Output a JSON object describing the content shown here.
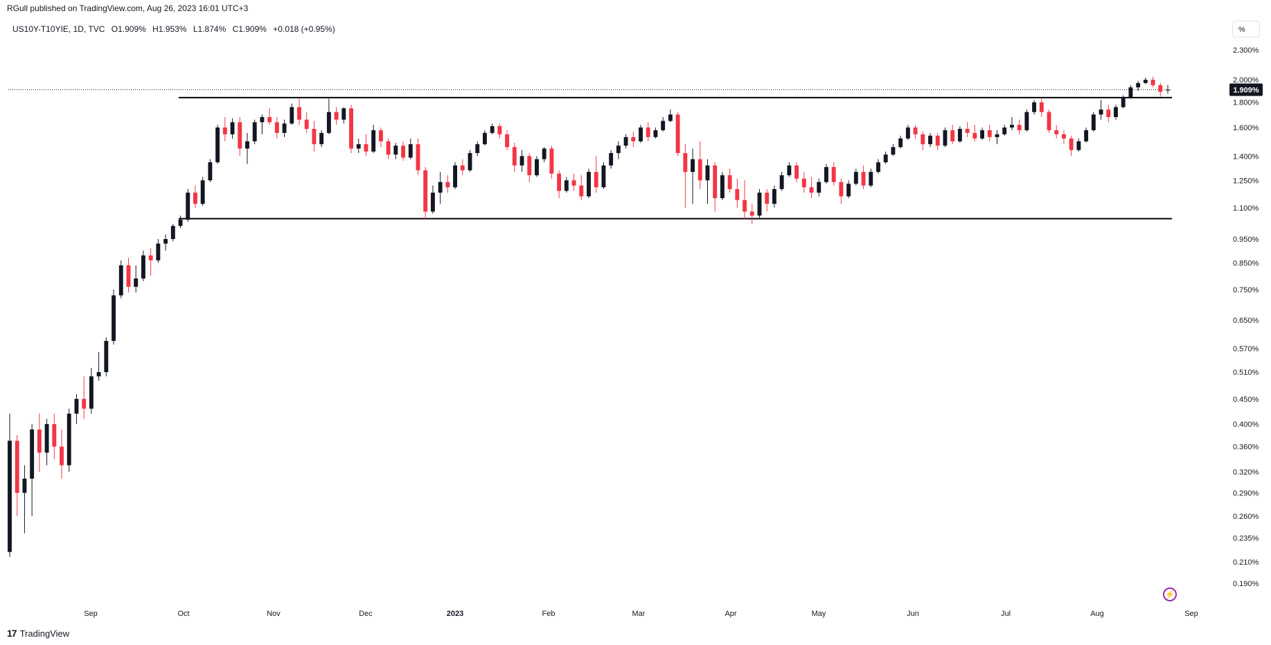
{
  "header": {
    "published": "RGull published on TradingView.com, Aug 26, 2023 16:01 UTC+3"
  },
  "symbol": {
    "name": "US10Y-T10YIE, 1D, TVC",
    "open": "O1.909%",
    "high": "H1.953%",
    "low": "L1.874%",
    "close": "C1.909%",
    "change": "+0.018 (+0.95%)"
  },
  "unit_button": {
    "label": "%"
  },
  "footer": {
    "logo_mark": "17",
    "logo_text": "TradingView"
  },
  "colors": {
    "up": "#131722",
    "down": "#f23645",
    "line": "#000000"
  },
  "icons": {
    "flash": "lightning-icon",
    "logo": "tradingview-logo-icon"
  },
  "chart_data": {
    "type": "candlestick",
    "scale": "log",
    "y_ticks": [
      "2.300%",
      "2.000%",
      "1.800%",
      "1.600%",
      "1.400%",
      "1.250%",
      "1.100%",
      "0.950%",
      "0.850%",
      "0.750%",
      "0.650%",
      "0.570%",
      "0.510%",
      "0.450%",
      "0.400%",
      "0.360%",
      "0.320%",
      "0.290%",
      "0.260%",
      "0.235%",
      "0.210%",
      "0.190%"
    ],
    "x_ticks": [
      "Sep",
      "Oct",
      "Nov",
      "Dec",
      "2023",
      "Feb",
      "Mar",
      "Apr",
      "May",
      "Jun",
      "Jul",
      "Aug",
      "Sep"
    ],
    "last_price_label": "1.909%",
    "last_price": 1.909,
    "horizontal_lines": [
      1.84,
      1.045
    ],
    "bars": [
      {
        "o": 0.22,
        "h": 0.42,
        "l": 0.215,
        "c": 0.37
      },
      {
        "o": 0.37,
        "h": 0.38,
        "l": 0.26,
        "c": 0.29
      },
      {
        "o": 0.29,
        "h": 0.33,
        "l": 0.24,
        "c": 0.31
      },
      {
        "o": 0.31,
        "h": 0.4,
        "l": 0.26,
        "c": 0.39
      },
      {
        "o": 0.39,
        "h": 0.42,
        "l": 0.32,
        "c": 0.35
      },
      {
        "o": 0.35,
        "h": 0.41,
        "l": 0.33,
        "c": 0.4
      },
      {
        "o": 0.4,
        "h": 0.42,
        "l": 0.34,
        "c": 0.36
      },
      {
        "o": 0.36,
        "h": 0.39,
        "l": 0.31,
        "c": 0.33
      },
      {
        "o": 0.33,
        "h": 0.43,
        "l": 0.32,
        "c": 0.42
      },
      {
        "o": 0.42,
        "h": 0.46,
        "l": 0.4,
        "c": 0.45
      },
      {
        "o": 0.45,
        "h": 0.5,
        "l": 0.41,
        "c": 0.43
      },
      {
        "o": 0.43,
        "h": 0.52,
        "l": 0.42,
        "c": 0.5
      },
      {
        "o": 0.5,
        "h": 0.56,
        "l": 0.49,
        "c": 0.51
      },
      {
        "o": 0.51,
        "h": 0.6,
        "l": 0.5,
        "c": 0.59
      },
      {
        "o": 0.59,
        "h": 0.75,
        "l": 0.58,
        "c": 0.73
      },
      {
        "o": 0.73,
        "h": 0.86,
        "l": 0.72,
        "c": 0.84
      },
      {
        "o": 0.84,
        "h": 0.87,
        "l": 0.74,
        "c": 0.76
      },
      {
        "o": 0.76,
        "h": 0.84,
        "l": 0.74,
        "c": 0.79
      },
      {
        "o": 0.79,
        "h": 0.9,
        "l": 0.78,
        "c": 0.88
      },
      {
        "o": 0.88,
        "h": 0.91,
        "l": 0.8,
        "c": 0.86
      },
      {
        "o": 0.86,
        "h": 0.95,
        "l": 0.85,
        "c": 0.93
      },
      {
        "o": 0.93,
        "h": 0.97,
        "l": 0.9,
        "c": 0.95
      },
      {
        "o": 0.95,
        "h": 1.02,
        "l": 0.94,
        "c": 1.01
      },
      {
        "o": 1.01,
        "h": 1.06,
        "l": 1.0,
        "c": 1.04
      },
      {
        "o": 1.04,
        "h": 1.2,
        "l": 1.03,
        "c": 1.18
      },
      {
        "o": 1.18,
        "h": 1.22,
        "l": 1.1,
        "c": 1.12
      },
      {
        "o": 1.12,
        "h": 1.27,
        "l": 1.11,
        "c": 1.25
      },
      {
        "o": 1.25,
        "h": 1.38,
        "l": 1.24,
        "c": 1.36
      },
      {
        "o": 1.36,
        "h": 1.62,
        "l": 1.35,
        "c": 1.6
      },
      {
        "o": 1.6,
        "h": 1.68,
        "l": 1.5,
        "c": 1.55
      },
      {
        "o": 1.55,
        "h": 1.67,
        "l": 1.52,
        "c": 1.64
      },
      {
        "o": 1.64,
        "h": 1.68,
        "l": 1.4,
        "c": 1.45
      },
      {
        "o": 1.45,
        "h": 1.56,
        "l": 1.35,
        "c": 1.5
      },
      {
        "o": 1.5,
        "h": 1.66,
        "l": 1.48,
        "c": 1.64
      },
      {
        "o": 1.64,
        "h": 1.7,
        "l": 1.55,
        "c": 1.68
      },
      {
        "o": 1.68,
        "h": 1.75,
        "l": 1.62,
        "c": 1.64
      },
      {
        "o": 1.64,
        "h": 1.68,
        "l": 1.52,
        "c": 1.56
      },
      {
        "o": 1.56,
        "h": 1.66,
        "l": 1.53,
        "c": 1.63
      },
      {
        "o": 1.63,
        "h": 1.79,
        "l": 1.62,
        "c": 1.76
      },
      {
        "o": 1.76,
        "h": 1.83,
        "l": 1.62,
        "c": 1.66
      },
      {
        "o": 1.66,
        "h": 1.72,
        "l": 1.56,
        "c": 1.59
      },
      {
        "o": 1.59,
        "h": 1.65,
        "l": 1.43,
        "c": 1.48
      },
      {
        "o": 1.48,
        "h": 1.58,
        "l": 1.46,
        "c": 1.56
      },
      {
        "o": 1.56,
        "h": 1.83,
        "l": 1.55,
        "c": 1.72
      },
      {
        "o": 1.72,
        "h": 1.76,
        "l": 1.62,
        "c": 1.66
      },
      {
        "o": 1.66,
        "h": 1.76,
        "l": 1.63,
        "c": 1.75
      },
      {
        "o": 1.75,
        "h": 1.78,
        "l": 1.42,
        "c": 1.45
      },
      {
        "o": 1.45,
        "h": 1.52,
        "l": 1.42,
        "c": 1.48
      },
      {
        "o": 1.48,
        "h": 1.55,
        "l": 1.4,
        "c": 1.43
      },
      {
        "o": 1.43,
        "h": 1.62,
        "l": 1.42,
        "c": 1.58
      },
      {
        "o": 1.58,
        "h": 1.6,
        "l": 1.46,
        "c": 1.5
      },
      {
        "o": 1.5,
        "h": 1.52,
        "l": 1.38,
        "c": 1.41
      },
      {
        "o": 1.41,
        "h": 1.49,
        "l": 1.38,
        "c": 1.47
      },
      {
        "o": 1.47,
        "h": 1.5,
        "l": 1.37,
        "c": 1.39
      },
      {
        "o": 1.39,
        "h": 1.52,
        "l": 1.38,
        "c": 1.48
      },
      {
        "o": 1.48,
        "h": 1.52,
        "l": 1.28,
        "c": 1.31
      },
      {
        "o": 1.31,
        "h": 1.33,
        "l": 1.04,
        "c": 1.08
      },
      {
        "o": 1.08,
        "h": 1.22,
        "l": 1.07,
        "c": 1.18
      },
      {
        "o": 1.18,
        "h": 1.3,
        "l": 1.12,
        "c": 1.24
      },
      {
        "o": 1.24,
        "h": 1.28,
        "l": 1.18,
        "c": 1.21
      },
      {
        "o": 1.21,
        "h": 1.36,
        "l": 1.2,
        "c": 1.34
      },
      {
        "o": 1.34,
        "h": 1.38,
        "l": 1.28,
        "c": 1.31
      },
      {
        "o": 1.31,
        "h": 1.44,
        "l": 1.3,
        "c": 1.42
      },
      {
        "o": 1.42,
        "h": 1.5,
        "l": 1.4,
        "c": 1.48
      },
      {
        "o": 1.48,
        "h": 1.58,
        "l": 1.47,
        "c": 1.56
      },
      {
        "o": 1.56,
        "h": 1.63,
        "l": 1.55,
        "c": 1.61
      },
      {
        "o": 1.61,
        "h": 1.63,
        "l": 1.52,
        "c": 1.55
      },
      {
        "o": 1.55,
        "h": 1.58,
        "l": 1.44,
        "c": 1.46
      },
      {
        "o": 1.46,
        "h": 1.49,
        "l": 1.3,
        "c": 1.34
      },
      {
        "o": 1.34,
        "h": 1.44,
        "l": 1.3,
        "c": 1.4
      },
      {
        "o": 1.4,
        "h": 1.42,
        "l": 1.24,
        "c": 1.28
      },
      {
        "o": 1.28,
        "h": 1.4,
        "l": 1.27,
        "c": 1.38
      },
      {
        "o": 1.38,
        "h": 1.46,
        "l": 1.36,
        "c": 1.45
      },
      {
        "o": 1.45,
        "h": 1.47,
        "l": 1.26,
        "c": 1.29
      },
      {
        "o": 1.29,
        "h": 1.31,
        "l": 1.15,
        "c": 1.19
      },
      {
        "o": 1.19,
        "h": 1.27,
        "l": 1.18,
        "c": 1.25
      },
      {
        "o": 1.25,
        "h": 1.29,
        "l": 1.19,
        "c": 1.22
      },
      {
        "o": 1.22,
        "h": 1.28,
        "l": 1.14,
        "c": 1.16
      },
      {
        "o": 1.16,
        "h": 1.32,
        "l": 1.15,
        "c": 1.3
      },
      {
        "o": 1.3,
        "h": 1.4,
        "l": 1.18,
        "c": 1.21
      },
      {
        "o": 1.21,
        "h": 1.36,
        "l": 1.2,
        "c": 1.34
      },
      {
        "o": 1.34,
        "h": 1.44,
        "l": 1.32,
        "c": 1.42
      },
      {
        "o": 1.42,
        "h": 1.5,
        "l": 1.38,
        "c": 1.47
      },
      {
        "o": 1.47,
        "h": 1.55,
        "l": 1.45,
        "c": 1.53
      },
      {
        "o": 1.53,
        "h": 1.57,
        "l": 1.46,
        "c": 1.5
      },
      {
        "o": 1.5,
        "h": 1.62,
        "l": 1.49,
        "c": 1.6
      },
      {
        "o": 1.6,
        "h": 1.64,
        "l": 1.5,
        "c": 1.53
      },
      {
        "o": 1.53,
        "h": 1.6,
        "l": 1.52,
        "c": 1.58
      },
      {
        "o": 1.58,
        "h": 1.68,
        "l": 1.57,
        "c": 1.65
      },
      {
        "o": 1.65,
        "h": 1.74,
        "l": 1.64,
        "c": 1.7
      },
      {
        "o": 1.7,
        "h": 1.72,
        "l": 1.4,
        "c": 1.42
      },
      {
        "o": 1.42,
        "h": 1.48,
        "l": 1.1,
        "c": 1.3
      },
      {
        "o": 1.3,
        "h": 1.45,
        "l": 1.12,
        "c": 1.38
      },
      {
        "o": 1.38,
        "h": 1.5,
        "l": 1.2,
        "c": 1.25
      },
      {
        "o": 1.25,
        "h": 1.38,
        "l": 1.12,
        "c": 1.34
      },
      {
        "o": 1.34,
        "h": 1.36,
        "l": 1.08,
        "c": 1.15
      },
      {
        "o": 1.15,
        "h": 1.3,
        "l": 1.14,
        "c": 1.28
      },
      {
        "o": 1.28,
        "h": 1.32,
        "l": 1.18,
        "c": 1.2
      },
      {
        "o": 1.2,
        "h": 1.26,
        "l": 1.1,
        "c": 1.14
      },
      {
        "o": 1.14,
        "h": 1.25,
        "l": 1.04,
        "c": 1.08
      },
      {
        "o": 1.08,
        "h": 1.12,
        "l": 1.02,
        "c": 1.06
      },
      {
        "o": 1.06,
        "h": 1.2,
        "l": 1.05,
        "c": 1.18
      },
      {
        "o": 1.18,
        "h": 1.2,
        "l": 1.08,
        "c": 1.12
      },
      {
        "o": 1.12,
        "h": 1.22,
        "l": 1.1,
        "c": 1.2
      },
      {
        "o": 1.2,
        "h": 1.3,
        "l": 1.19,
        "c": 1.28
      },
      {
        "o": 1.28,
        "h": 1.36,
        "l": 1.27,
        "c": 1.34
      },
      {
        "o": 1.34,
        "h": 1.36,
        "l": 1.24,
        "c": 1.26
      },
      {
        "o": 1.26,
        "h": 1.3,
        "l": 1.18,
        "c": 1.21
      },
      {
        "o": 1.21,
        "h": 1.27,
        "l": 1.15,
        "c": 1.18
      },
      {
        "o": 1.18,
        "h": 1.26,
        "l": 1.16,
        "c": 1.24
      },
      {
        "o": 1.24,
        "h": 1.35,
        "l": 1.23,
        "c": 1.33
      },
      {
        "o": 1.33,
        "h": 1.36,
        "l": 1.22,
        "c": 1.24
      },
      {
        "o": 1.24,
        "h": 1.26,
        "l": 1.12,
        "c": 1.16
      },
      {
        "o": 1.16,
        "h": 1.25,
        "l": 1.15,
        "c": 1.23
      },
      {
        "o": 1.23,
        "h": 1.32,
        "l": 1.22,
        "c": 1.3
      },
      {
        "o": 1.3,
        "h": 1.34,
        "l": 1.2,
        "c": 1.22
      },
      {
        "o": 1.22,
        "h": 1.32,
        "l": 1.21,
        "c": 1.3
      },
      {
        "o": 1.3,
        "h": 1.38,
        "l": 1.29,
        "c": 1.36
      },
      {
        "o": 1.36,
        "h": 1.43,
        "l": 1.35,
        "c": 1.41
      },
      {
        "o": 1.41,
        "h": 1.48,
        "l": 1.4,
        "c": 1.46
      },
      {
        "o": 1.46,
        "h": 1.54,
        "l": 1.45,
        "c": 1.52
      },
      {
        "o": 1.52,
        "h": 1.62,
        "l": 1.51,
        "c": 1.6
      },
      {
        "o": 1.6,
        "h": 1.62,
        "l": 1.52,
        "c": 1.55
      },
      {
        "o": 1.55,
        "h": 1.57,
        "l": 1.44,
        "c": 1.48
      },
      {
        "o": 1.48,
        "h": 1.56,
        "l": 1.46,
        "c": 1.54
      },
      {
        "o": 1.54,
        "h": 1.56,
        "l": 1.44,
        "c": 1.47
      },
      {
        "o": 1.47,
        "h": 1.6,
        "l": 1.46,
        "c": 1.58
      },
      {
        "o": 1.58,
        "h": 1.62,
        "l": 1.48,
        "c": 1.5
      },
      {
        "o": 1.5,
        "h": 1.61,
        "l": 1.49,
        "c": 1.59
      },
      {
        "o": 1.59,
        "h": 1.64,
        "l": 1.53,
        "c": 1.56
      },
      {
        "o": 1.56,
        "h": 1.62,
        "l": 1.5,
        "c": 1.52
      },
      {
        "o": 1.52,
        "h": 1.6,
        "l": 1.51,
        "c": 1.58
      },
      {
        "o": 1.58,
        "h": 1.62,
        "l": 1.5,
        "c": 1.53
      },
      {
        "o": 1.53,
        "h": 1.58,
        "l": 1.48,
        "c": 1.55
      },
      {
        "o": 1.55,
        "h": 1.62,
        "l": 1.54,
        "c": 1.6
      },
      {
        "o": 1.6,
        "h": 1.68,
        "l": 1.58,
        "c": 1.62
      },
      {
        "o": 1.62,
        "h": 1.66,
        "l": 1.55,
        "c": 1.58
      },
      {
        "o": 1.58,
        "h": 1.74,
        "l": 1.57,
        "c": 1.72
      },
      {
        "o": 1.72,
        "h": 1.82,
        "l": 1.7,
        "c": 1.8
      },
      {
        "o": 1.8,
        "h": 1.84,
        "l": 1.68,
        "c": 1.72
      },
      {
        "o": 1.72,
        "h": 1.74,
        "l": 1.56,
        "c": 1.58
      },
      {
        "o": 1.58,
        "h": 1.62,
        "l": 1.52,
        "c": 1.55
      },
      {
        "o": 1.55,
        "h": 1.58,
        "l": 1.48,
        "c": 1.52
      },
      {
        "o": 1.52,
        "h": 1.54,
        "l": 1.4,
        "c": 1.44
      },
      {
        "o": 1.44,
        "h": 1.52,
        "l": 1.43,
        "c": 1.5
      },
      {
        "o": 1.5,
        "h": 1.6,
        "l": 1.49,
        "c": 1.58
      },
      {
        "o": 1.58,
        "h": 1.72,
        "l": 1.57,
        "c": 1.7
      },
      {
        "o": 1.7,
        "h": 1.82,
        "l": 1.66,
        "c": 1.74
      },
      {
        "o": 1.74,
        "h": 1.78,
        "l": 1.64,
        "c": 1.68
      },
      {
        "o": 1.68,
        "h": 1.78,
        "l": 1.66,
        "c": 1.76
      },
      {
        "o": 1.76,
        "h": 1.86,
        "l": 1.75,
        "c": 1.84
      },
      {
        "o": 1.84,
        "h": 1.95,
        "l": 1.83,
        "c": 1.93
      },
      {
        "o": 1.93,
        "h": 1.99,
        "l": 1.9,
        "c": 1.97
      },
      {
        "o": 1.97,
        "h": 2.02,
        "l": 1.96,
        "c": 2.0
      },
      {
        "o": 2.0,
        "h": 2.03,
        "l": 1.93,
        "c": 1.95
      },
      {
        "o": 1.95,
        "h": 1.97,
        "l": 1.85,
        "c": 1.891
      },
      {
        "o": 1.909,
        "h": 1.953,
        "l": 1.874,
        "c": 1.909
      }
    ]
  }
}
